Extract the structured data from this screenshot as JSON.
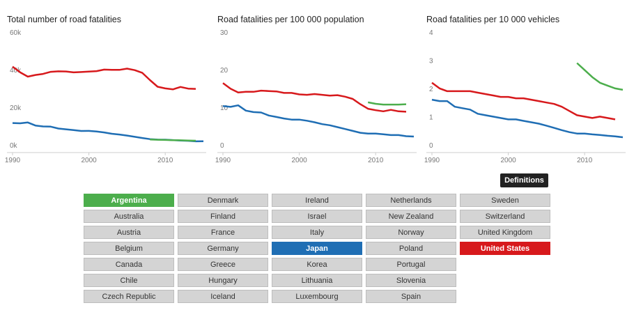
{
  "chart_data": [
    {
      "type": "line",
      "title": "Total number of road fatalities",
      "x": [
        1990,
        1991,
        1992,
        1993,
        1994,
        1995,
        1996,
        1997,
        1998,
        1999,
        2000,
        2001,
        2002,
        2003,
        2004,
        2005,
        2006,
        2007,
        2008,
        2009,
        2010,
        2011,
        2012,
        2013,
        2014,
        2015
      ],
      "xlim": [
        1990,
        2015
      ],
      "xticks": [
        1990,
        2000,
        2010
      ],
      "ylim": [
        0,
        60000
      ],
      "yticks": [
        {
          "value": 0,
          "label": "0k"
        },
        {
          "value": 20000,
          "label": "20k"
        },
        {
          "value": 40000,
          "label": "40k"
        },
        {
          "value": 60000,
          "label": "60k"
        }
      ],
      "grid": false,
      "series": [
        {
          "name": "United States",
          "color": "#d7191c",
          "values": [
            44599,
            41508,
            39250,
            40150,
            40716,
            41817,
            42065,
            42013,
            41501,
            41717,
            41945,
            42196,
            43005,
            42884,
            42836,
            43510,
            42708,
            41259,
            37423,
            33883,
            32999,
            32479,
            33782,
            32893,
            32744,
            null
          ]
        },
        {
          "name": "Japan",
          "color": "#1f6eb4",
          "values": [
            14595,
            14436,
            14886,
            13269,
            12768,
            12670,
            11674,
            11254,
            10805,
            10372,
            10403,
            10060,
            9575,
            8877,
            8492,
            7931,
            7272,
            6639,
            6023,
            5772,
            5745,
            5535,
            5261,
            5165,
            4838,
            4900
          ]
        },
        {
          "name": "Argentina",
          "color": "#4cae4c",
          "values": [
            null,
            null,
            null,
            null,
            null,
            null,
            null,
            null,
            null,
            null,
            null,
            null,
            null,
            null,
            null,
            null,
            null,
            null,
            5800,
            5700,
            5600,
            5500,
            5400,
            5300,
            5200,
            null
          ]
        }
      ]
    },
    {
      "type": "line",
      "title": "Road fatalities per 100 000 population",
      "x": [
        1990,
        1991,
        1992,
        1993,
        1994,
        1995,
        1996,
        1997,
        1998,
        1999,
        2000,
        2001,
        2002,
        2003,
        2004,
        2005,
        2006,
        2007,
        2008,
        2009,
        2010,
        2011,
        2012,
        2013,
        2014,
        2015
      ],
      "xlim": [
        1990,
        2015
      ],
      "xticks": [
        1990,
        2000,
        2010
      ],
      "ylim": [
        0,
        30
      ],
      "yticks": [
        0,
        10,
        20,
        30
      ],
      "grid": false,
      "series": [
        {
          "name": "United States",
          "color": "#d7191c",
          "values": [
            17.9,
            16.4,
            15.4,
            15.6,
            15.6,
            15.9,
            15.8,
            15.7,
            15.3,
            15.3,
            14.9,
            14.8,
            15.0,
            14.8,
            14.6,
            14.7,
            14.3,
            13.7,
            12.3,
            11.1,
            10.7,
            10.4,
            10.8,
            10.4,
            10.3,
            null
          ]
        },
        {
          "name": "Japan",
          "color": "#1f6eb4",
          "values": [
            11.8,
            11.6,
            12.0,
            10.6,
            10.2,
            10.1,
            9.3,
            8.9,
            8.5,
            8.2,
            8.2,
            7.9,
            7.5,
            7.0,
            6.7,
            6.2,
            5.7,
            5.2,
            4.7,
            4.5,
            4.5,
            4.3,
            4.1,
            4.1,
            3.8,
            3.7
          ]
        },
        {
          "name": "Argentina",
          "color": "#4cae4c",
          "values": [
            null,
            null,
            null,
            null,
            null,
            null,
            null,
            null,
            null,
            null,
            null,
            null,
            null,
            null,
            null,
            null,
            null,
            null,
            null,
            12.8,
            12.4,
            12.2,
            12.2,
            12.2,
            12.3,
            null
          ]
        }
      ]
    },
    {
      "type": "line",
      "title": "Road fatalities per 10 000 vehicles",
      "x": [
        1990,
        1991,
        1992,
        1993,
        1994,
        1995,
        1996,
        1997,
        1998,
        1999,
        2000,
        2001,
        2002,
        2003,
        2004,
        2005,
        2006,
        2007,
        2008,
        2009,
        2010,
        2011,
        2012,
        2013,
        2014,
        2015
      ],
      "xlim": [
        1990,
        2015
      ],
      "xticks": [
        1990,
        2000,
        2010
      ],
      "ylim": [
        0,
        4
      ],
      "yticks": [
        0,
        1,
        2,
        3,
        4
      ],
      "grid": false,
      "series": [
        {
          "name": "United States",
          "color": "#d7191c",
          "values": [
            2.4,
            2.2,
            2.1,
            2.1,
            2.1,
            2.1,
            2.05,
            2.0,
            1.95,
            1.9,
            1.9,
            1.85,
            1.85,
            1.8,
            1.75,
            1.7,
            1.65,
            1.55,
            1.4,
            1.25,
            1.2,
            1.15,
            1.2,
            1.15,
            1.1,
            null
          ]
        },
        {
          "name": "Japan",
          "color": "#1f6eb4",
          "values": [
            1.8,
            1.75,
            1.75,
            1.55,
            1.5,
            1.45,
            1.3,
            1.25,
            1.2,
            1.15,
            1.1,
            1.1,
            1.05,
            1.0,
            0.95,
            0.88,
            0.8,
            0.72,
            0.65,
            0.6,
            0.6,
            0.57,
            0.55,
            0.52,
            0.5,
            0.47
          ]
        },
        {
          "name": "Argentina",
          "color": "#4cae4c",
          "values": [
            null,
            null,
            null,
            null,
            null,
            null,
            null,
            null,
            null,
            null,
            null,
            null,
            null,
            null,
            null,
            null,
            null,
            null,
            null,
            3.1,
            2.85,
            2.6,
            2.4,
            2.3,
            2.2,
            2.15
          ]
        }
      ]
    }
  ],
  "definitions_button": "Definitions",
  "country_columns": [
    [
      "Argentina",
      "Australia",
      "Austria",
      "Belgium",
      "Canada",
      "Chile",
      "Czech Republic"
    ],
    [
      "Denmark",
      "Finland",
      "France",
      "Germany",
      "Greece",
      "Hungary",
      "Iceland"
    ],
    [
      "Ireland",
      "Israel",
      "Italy",
      "Japan",
      "Korea",
      "Lithuania",
      "Luxembourg"
    ],
    [
      "Netherlands",
      "New Zealand",
      "Norway",
      "Poland",
      "Portugal",
      "Slovenia",
      "Spain"
    ],
    [
      "Sweden",
      "Switzerland",
      "United Kingdom",
      "United States"
    ]
  ]
}
